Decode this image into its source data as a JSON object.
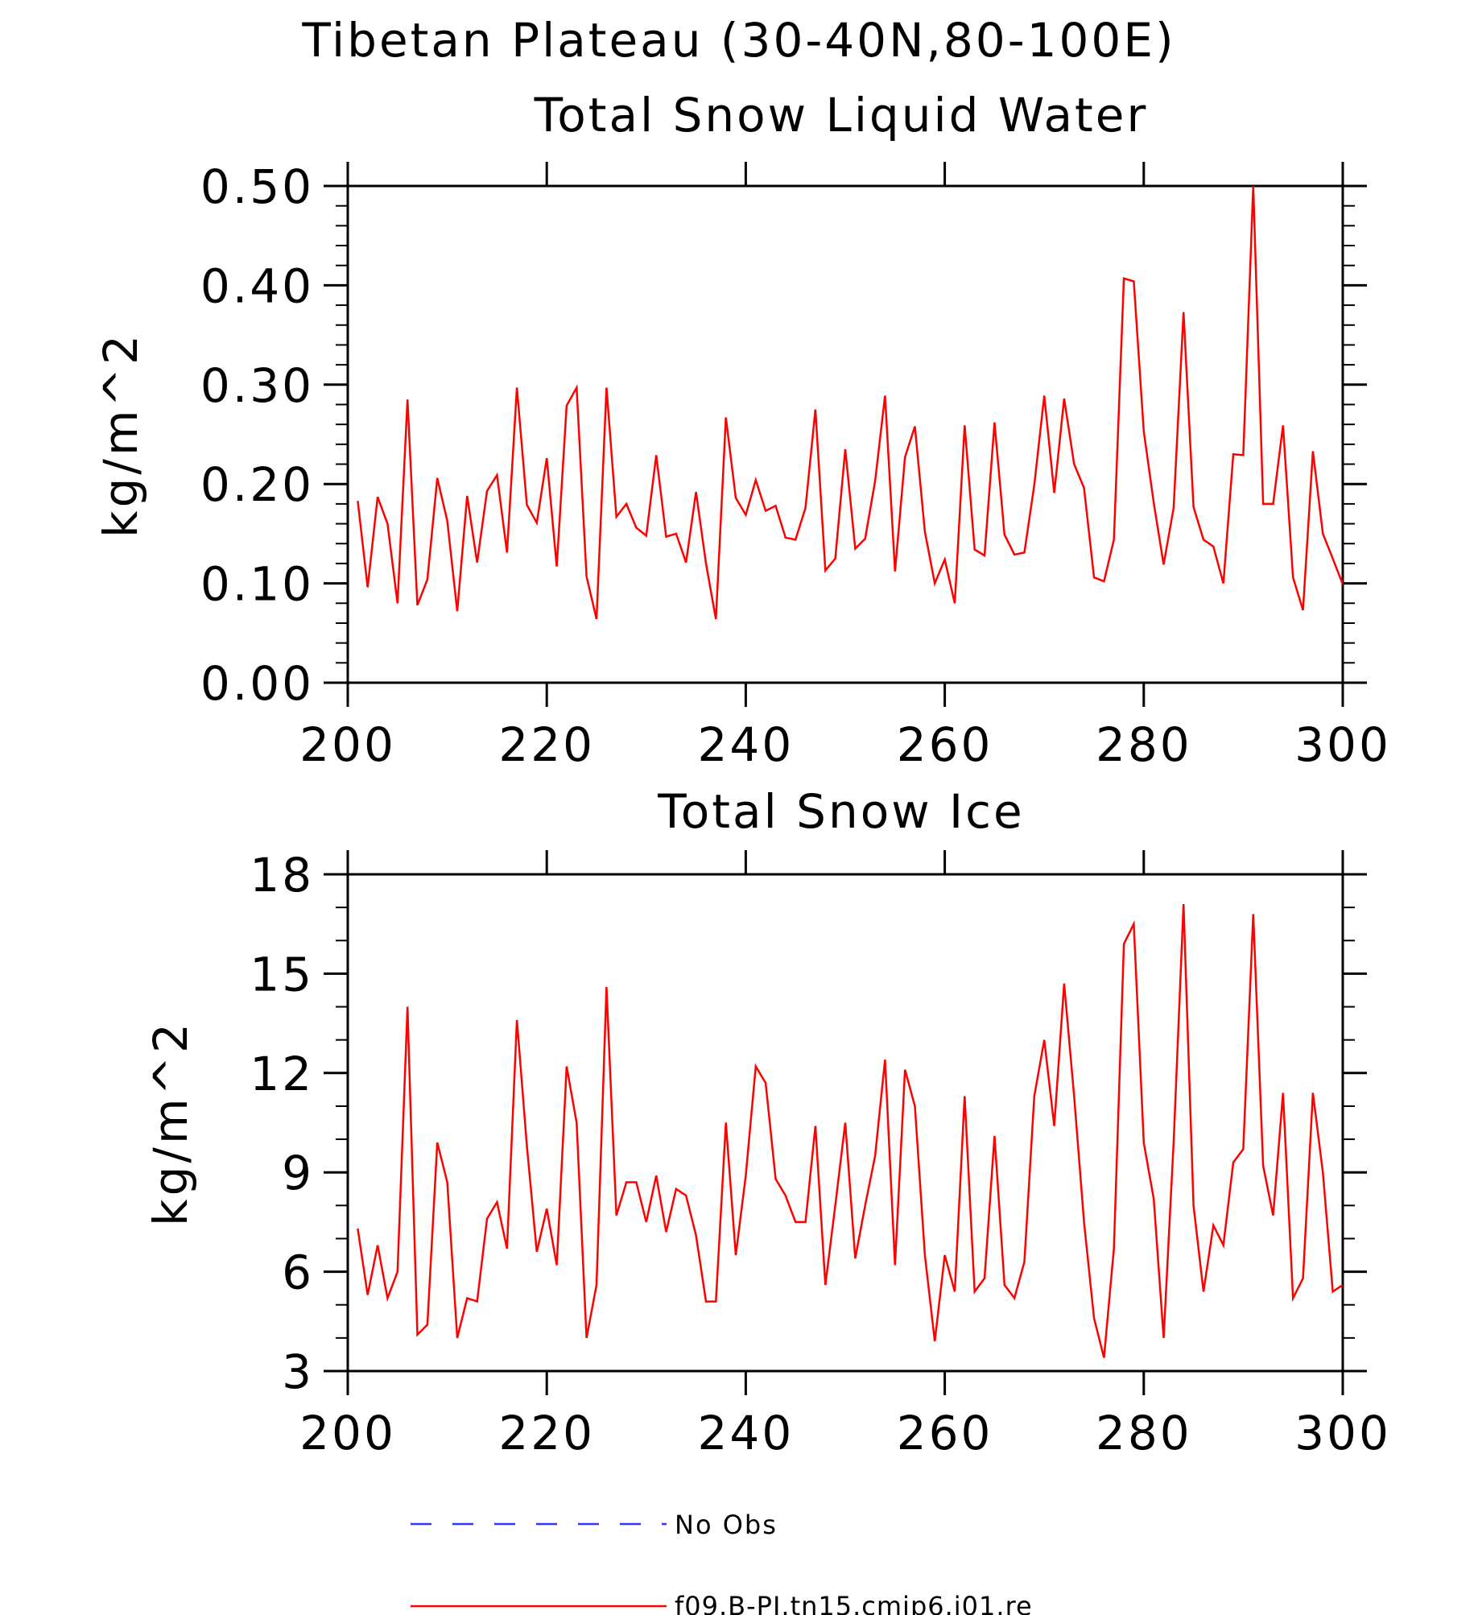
{
  "figure": {
    "title": "Tibetan Plateau (30-40N,80-100E)"
  },
  "chart_data": [
    {
      "type": "line",
      "title": "Total Snow Liquid Water",
      "xlabel": "",
      "ylabel": "kg/m^2",
      "xlim": [
        200,
        300
      ],
      "ylim": [
        0,
        0.5
      ],
      "x_ticks": [
        "200",
        "220",
        "240",
        "260",
        "280",
        "300"
      ],
      "y_ticks": [
        "0.00",
        "0.10",
        "0.20",
        "0.30",
        "0.40",
        "0.50"
      ],
      "grid": false,
      "series": [
        {
          "name": "f09.B-PI.tn15.cmip6.j01.re",
          "color": "#ff0000",
          "x_start": 201,
          "x_step": 1,
          "values": [
            0.183,
            0.096,
            0.187,
            0.16,
            0.08,
            0.285,
            0.078,
            0.104,
            0.206,
            0.163,
            0.072,
            0.188,
            0.121,
            0.193,
            0.209,
            0.131,
            0.297,
            0.179,
            0.161,
            0.226,
            0.117,
            0.279,
            0.297,
            0.107,
            0.064,
            0.297,
            0.167,
            0.18,
            0.156,
            0.148,
            0.229,
            0.147,
            0.15,
            0.121,
            0.192,
            0.12,
            0.064,
            0.267,
            0.186,
            0.169,
            0.204,
            0.173,
            0.178,
            0.146,
            0.144,
            0.176,
            0.275,
            0.113,
            0.125,
            0.235,
            0.135,
            0.145,
            0.203,
            0.289,
            0.112,
            0.227,
            0.258,
            0.152,
            0.1,
            0.124,
            0.08,
            0.259,
            0.134,
            0.128,
            0.262,
            0.149,
            0.129,
            0.131,
            0.199,
            0.289,
            0.191,
            0.286,
            0.22,
            0.196,
            0.106,
            0.102,
            0.144,
            0.407,
            0.404,
            0.253,
            0.181,
            0.119,
            0.176,
            0.373,
            0.177,
            0.144,
            0.137,
            0.1,
            0.23,
            0.229,
            0.5,
            0.18,
            0.18,
            0.259,
            0.106,
            0.073,
            0.233,
            0.15,
            0.125,
            0.099
          ]
        }
      ]
    },
    {
      "type": "line",
      "title": "Total Snow Ice",
      "xlabel": "",
      "ylabel": "kg/m^2",
      "xlim": [
        200,
        300
      ],
      "ylim": [
        3,
        18
      ],
      "x_ticks": [
        "200",
        "220",
        "240",
        "260",
        "280",
        "300"
      ],
      "y_ticks": [
        "3",
        "6",
        "9",
        "12",
        "15",
        "18"
      ],
      "grid": false,
      "series": [
        {
          "name": "f09.B-PI.tn15.cmip6.j01.re",
          "color": "#ff0000",
          "x_start": 201,
          "x_step": 1,
          "values": [
            7.3,
            5.3,
            6.8,
            5.2,
            6.0,
            14.0,
            4.1,
            4.4,
            9.9,
            8.7,
            4.0,
            5.2,
            5.1,
            7.6,
            8.1,
            6.7,
            13.6,
            9.8,
            6.6,
            7.9,
            6.2,
            12.2,
            10.5,
            4.0,
            5.6,
            14.6,
            7.7,
            8.7,
            8.7,
            7.5,
            8.9,
            7.2,
            8.5,
            8.3,
            7.1,
            5.1,
            5.1,
            10.5,
            6.5,
            8.9,
            12.2,
            11.7,
            8.8,
            8.3,
            7.5,
            7.5,
            10.4,
            5.6,
            8.0,
            10.5,
            6.4,
            8.0,
            9.5,
            12.4,
            6.2,
            12.1,
            11.0,
            6.5,
            3.9,
            6.5,
            5.4,
            11.3,
            5.4,
            5.8,
            10.1,
            5.6,
            5.2,
            6.3,
            11.3,
            13.0,
            10.4,
            14.7,
            11.3,
            7.5,
            4.6,
            3.4,
            6.7,
            15.9,
            16.5,
            9.9,
            8.2,
            4.0,
            9.9,
            17.1,
            8.0,
            5.4,
            7.4,
            6.8,
            9.3,
            9.7,
            16.8,
            9.2,
            7.7,
            11.4,
            5.2,
            5.8,
            11.4,
            9.0,
            5.4,
            5.6
          ]
        }
      ]
    }
  ],
  "legend": {
    "placement": "bottom",
    "items": [
      {
        "label": "No Obs",
        "color": "#3333ff",
        "style": "dashed"
      },
      {
        "label": "f09.B-PI.tn15.cmip6.j01.re",
        "color": "#ff0000",
        "style": "solid"
      }
    ]
  }
}
